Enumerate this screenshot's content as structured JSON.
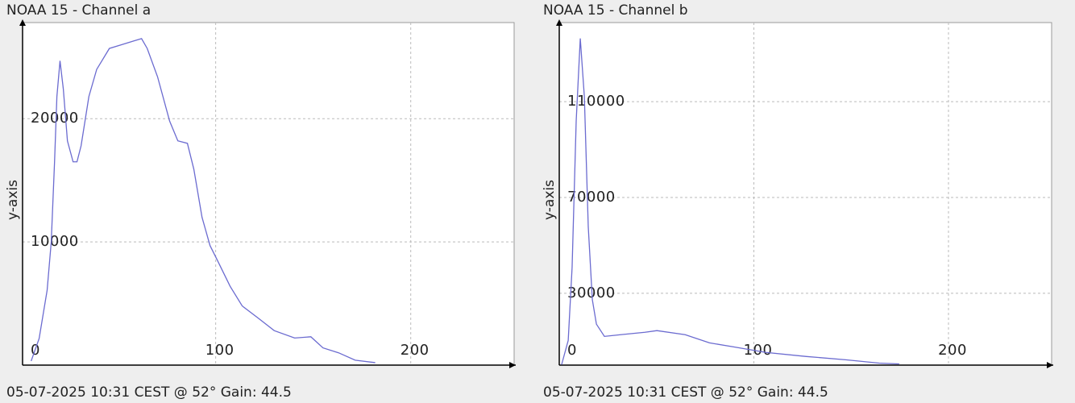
{
  "chart_data": [
    {
      "type": "line",
      "title": "NOAA 15 - Channel a",
      "ylabel": "y-axis",
      "caption": "05-07-2025 10:31 CEST @ 52° Gain: 44.5",
      "color": "#6b6bd0",
      "grid": true,
      "xlim": [
        1,
        253
      ],
      "ylim": [
        0,
        27800
      ],
      "xticks": [
        0,
        100,
        200
      ],
      "yticks": [
        10000,
        20000
      ],
      "x": [
        5.4,
        9.5,
        13.6,
        15.7,
        17.4,
        18.6,
        20.2,
        21.9,
        24,
        26.9,
        28.9,
        31,
        35,
        39,
        45.5,
        51.7,
        57.9,
        62,
        64.9,
        70.2,
        76.4,
        80.6,
        85.5,
        88.8,
        93,
        97.1,
        101.2,
        107.4,
        113.6,
        121.9,
        130,
        140.5,
        148.8,
        155,
        163,
        171.5,
        181.8
      ],
      "values": [
        330,
        2160,
        6080,
        10000,
        16500,
        21800,
        24700,
        22400,
        18200,
        16500,
        16500,
        17800,
        21800,
        24000,
        25700,
        26000,
        26300,
        26500,
        25700,
        23400,
        19800,
        18200,
        18000,
        15900,
        12000,
        9700,
        8400,
        6400,
        4800,
        3800,
        2800,
        2200,
        2300,
        1400,
        1000,
        400,
        200
      ]
    },
    {
      "type": "line",
      "title": "NOAA 15 - Channel b",
      "ylabel": "y-axis",
      "caption": "05-07-2025 10:31 CEST @ 52° Gain: 44.5",
      "color": "#6b6bd0",
      "grid": true,
      "xlim": [
        0,
        253
      ],
      "ylim": [
        0,
        143000
      ],
      "xticks": [
        0,
        100,
        200
      ],
      "yticks": [
        30000,
        70000,
        110000
      ],
      "x": [
        1.2,
        4.6,
        6.6,
        8.7,
        10.8,
        12.9,
        14.9,
        17,
        19.1,
        23.2,
        31.5,
        44,
        50.2,
        64.7,
        77.2,
        89.6,
        106.2,
        127,
        147.7,
        164.3,
        174.7
      ],
      "values": [
        170,
        10300,
        40800,
        101900,
        136400,
        112000,
        57800,
        27300,
        17100,
        12000,
        12700,
        13700,
        14400,
        12700,
        9300,
        7600,
        5300,
        3600,
        2200,
        850,
        500
      ]
    }
  ]
}
